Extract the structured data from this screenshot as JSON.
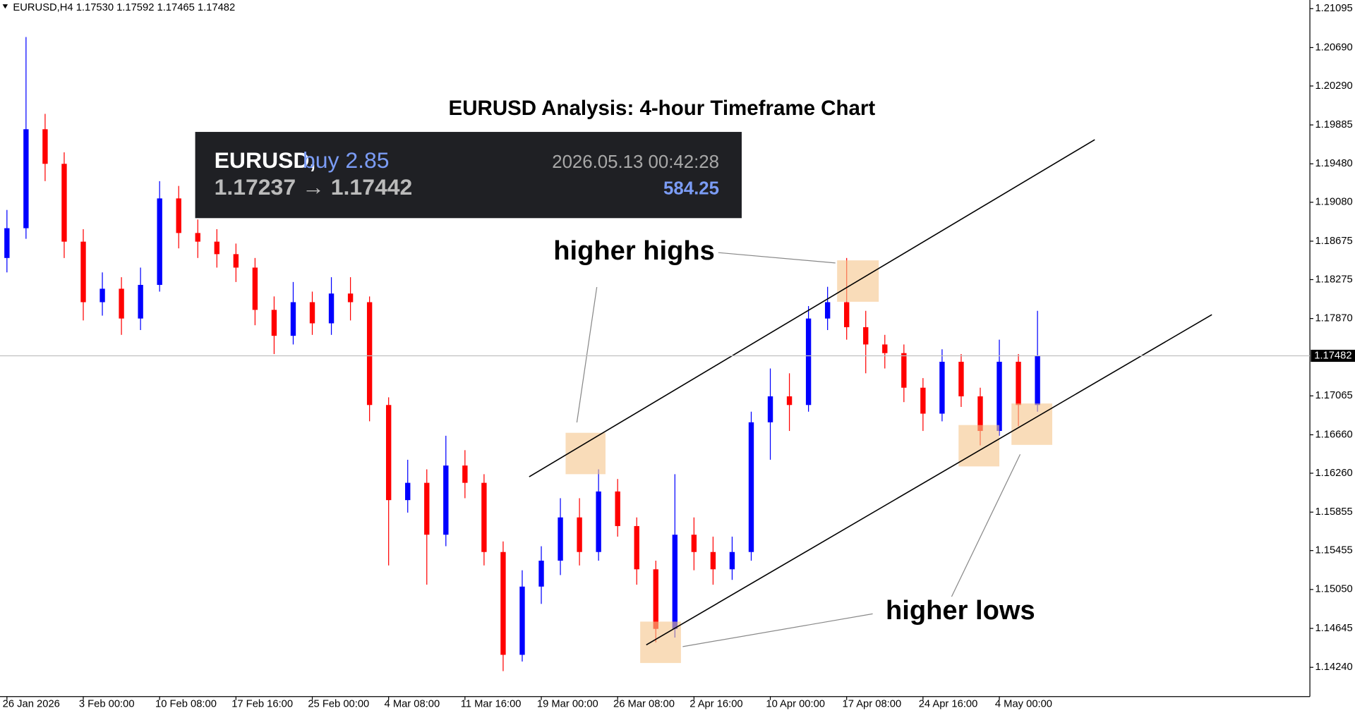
{
  "chart_data": {
    "type": "candlestick",
    "header": "EURUSD,H4  1.17530 1.17592 1.17465 1.17482",
    "title": "EURUSD Analysis: 4-hour Timeframe Chart",
    "trade_box": {
      "symbol": "EURUSD,",
      "side": "buy 2.85",
      "prices": "1.17237 → 1.17442",
      "time": "2026.05.13 00:42:28",
      "profit": "584.25"
    },
    "annotations": {
      "highs": "higher highs",
      "lows": "higher lows"
    },
    "up_color": "#0000ff",
    "down_color": "#ff0000",
    "current_price": 1.17482,
    "ylim": [
      1.13935,
      1.21185
    ],
    "yticks": [
      1.21095,
      {
        "value": 1.2069,
        "label": "1.20690"
      },
      {
        "value": 1.2029,
        "label": "1.20290"
      },
      1.19885,
      {
        "value": 1.1948,
        "label": "1.19480"
      },
      {
        "value": 1.1908,
        "label": "1.19080"
      },
      1.18675,
      1.18275,
      {
        "value": 1.1787,
        "label": "1.17870"
      },
      1.17065,
      {
        "value": 1.1666,
        "label": "1.16660"
      },
      {
        "value": 1.1626,
        "label": "1.16260"
      },
      1.15855,
      1.15455,
      {
        "value": 1.1505,
        "label": "1.15050"
      },
      1.14645,
      {
        "value": 1.1424,
        "label": "1.14240"
      }
    ],
    "categories": [
      "26 Jan 2026",
      null,
      null,
      null,
      "3 Feb 00:00",
      null,
      null,
      null,
      "10 Feb 08:00",
      null,
      null,
      null,
      "17 Feb 16:00",
      null,
      null,
      null,
      "25 Feb 00:00",
      null,
      null,
      null,
      "4 Mar 08:00",
      null,
      null,
      null,
      "11 Mar 16:00",
      null,
      null,
      null,
      "19 Mar 00:00",
      null,
      null,
      null,
      "26 Mar 08:00",
      null,
      null,
      null,
      "2 Apr 16:00",
      null,
      null,
      null,
      "10 Apr 00:00",
      null,
      null,
      null,
      "17 Apr 08:00",
      null,
      null,
      null,
      "24 Apr 16:00",
      null,
      null,
      null,
      "4 May 00:00",
      null,
      null
    ],
    "open": [
      1.185,
      1.1881,
      1.1984,
      1.1948,
      1.1867,
      1.1804,
      1.1818,
      1.1787,
      1.1822,
      1.1912,
      1.1876,
      1.1867,
      1.1854,
      1.184,
      1.1796,
      1.1769,
      1.1804,
      1.1782,
      1.1813,
      1.1804,
      1.1697,
      1.1598,
      1.1616,
      1.1562,
      1.1634,
      1.1616,
      1.1544,
      1.1437,
      1.1508,
      1.1535,
      1.158,
      1.1544,
      1.1607,
      1.1571,
      1.1526,
      1.1464,
      1.1562,
      1.1544,
      1.1526,
      1.1544,
      1.1679,
      1.1706,
      1.1697,
      1.1787,
      1.1804,
      1.1778,
      1.176,
      1.1751,
      1.1715,
      1.1688,
      1.1742,
      1.1706,
      1.167,
      1.1742,
      1.1697
    ],
    "high": [
      1.19,
      1.208,
      1.2,
      1.196,
      1.188,
      1.1835,
      1.183,
      1.184,
      1.193,
      1.1925,
      1.189,
      1.188,
      1.1865,
      1.185,
      1.181,
      1.1825,
      1.1815,
      1.183,
      1.183,
      1.181,
      1.1705,
      1.164,
      1.163,
      1.1665,
      1.165,
      1.1625,
      1.1555,
      1.1525,
      1.155,
      1.16,
      1.16,
      1.163,
      1.162,
      1.158,
      1.1535,
      1.1625,
      1.158,
      1.156,
      1.156,
      1.169,
      1.1735,
      1.173,
      1.18,
      1.182,
      1.185,
      1.1795,
      1.177,
      1.176,
      1.1725,
      1.1755,
      1.175,
      1.1715,
      1.1765,
      1.175,
      1.1795
    ],
    "low": [
      1.1835,
      1.187,
      1.193,
      1.185,
      1.1785,
      1.179,
      1.177,
      1.1775,
      1.1815,
      1.186,
      1.185,
      1.184,
      1.1825,
      1.178,
      1.175,
      1.176,
      1.177,
      1.177,
      1.1785,
      1.168,
      1.153,
      1.1585,
      1.151,
      1.155,
      1.16,
      1.153,
      1.142,
      1.143,
      1.149,
      1.152,
      1.153,
      1.1535,
      1.156,
      1.151,
      1.145,
      1.1455,
      1.1525,
      1.151,
      1.1515,
      1.1535,
      1.164,
      1.167,
      1.169,
      1.1775,
      1.1765,
      1.173,
      1.1735,
      1.17,
      1.167,
      1.168,
      1.1695,
      1.1655,
      1.1665,
      1.1675,
      1.169
    ],
    "close": [
      1.1881,
      1.1984,
      1.1948,
      1.1867,
      1.1804,
      1.1818,
      1.1787,
      1.1822,
      1.1912,
      1.1876,
      1.1867,
      1.1854,
      1.184,
      1.1796,
      1.1769,
      1.1804,
      1.1782,
      1.1813,
      1.1804,
      1.1697,
      1.1598,
      1.1616,
      1.1562,
      1.1634,
      1.1616,
      1.1544,
      1.1437,
      1.1508,
      1.1535,
      1.158,
      1.1544,
      1.1607,
      1.1571,
      1.1526,
      1.1464,
      1.1562,
      1.1544,
      1.1526,
      1.1544,
      1.1679,
      1.1706,
      1.1697,
      1.1787,
      1.1804,
      1.1778,
      1.176,
      1.1751,
      1.1715,
      1.1688,
      1.1742,
      1.1706,
      1.167,
      1.1742,
      1.1697,
      1.1748
    ]
  }
}
